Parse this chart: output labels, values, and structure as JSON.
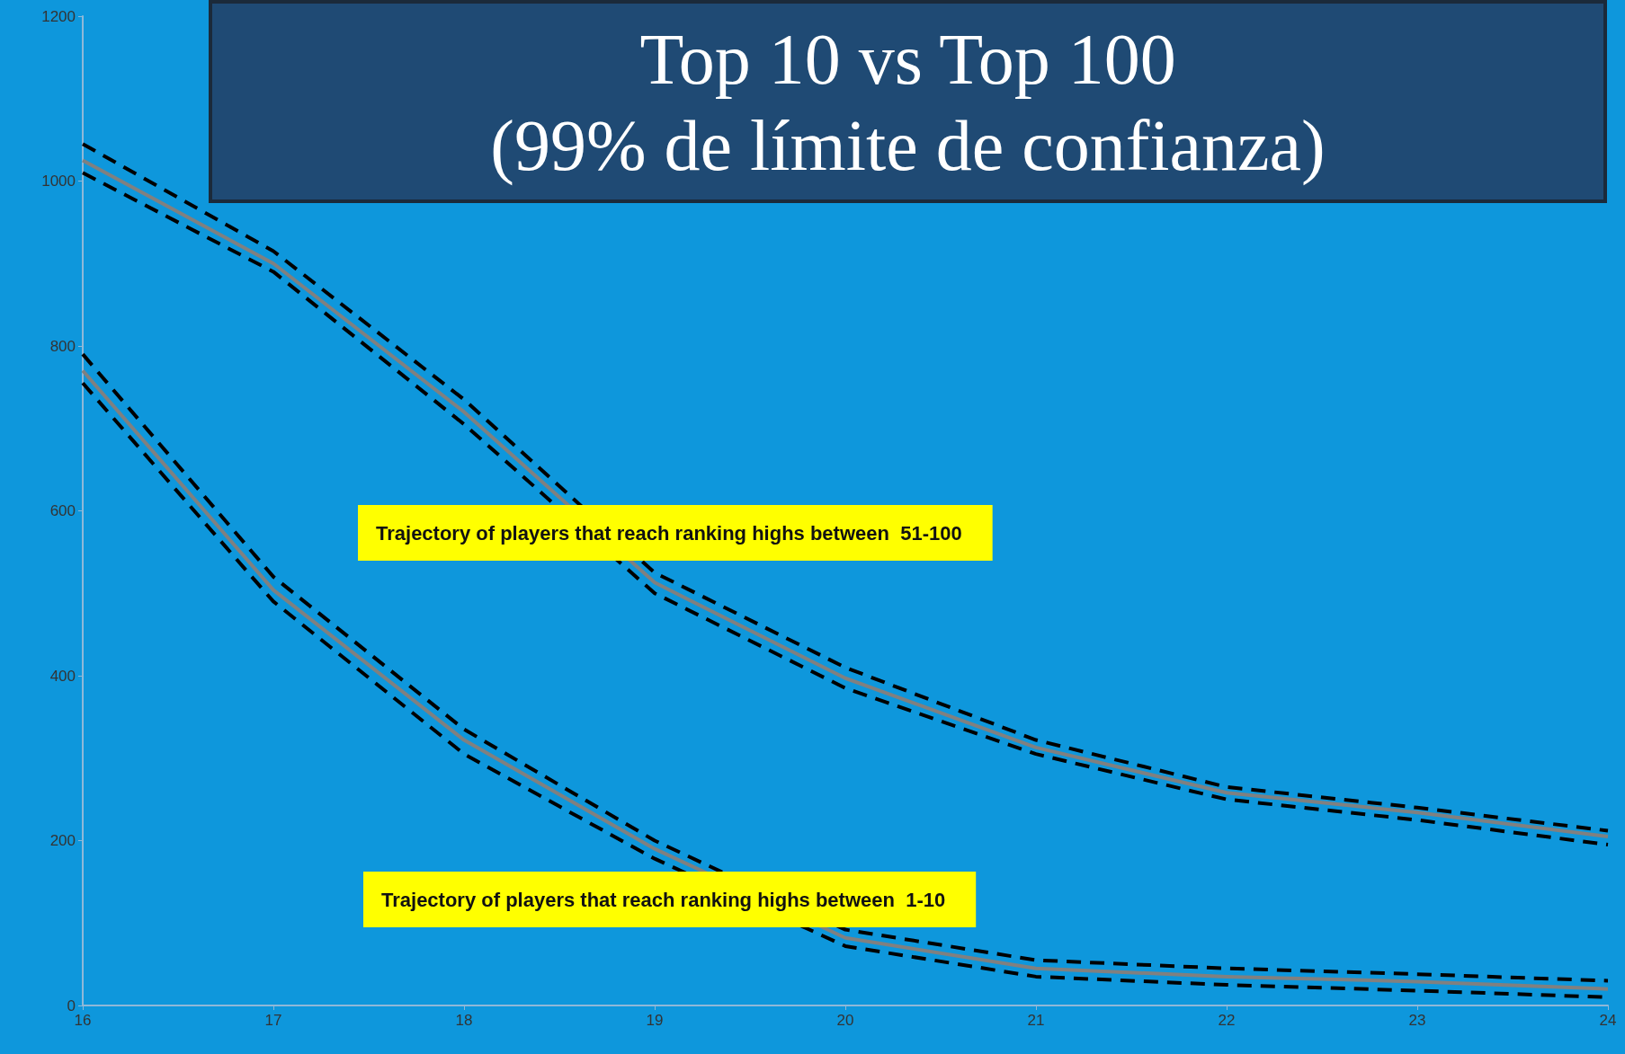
{
  "chart_data": {
    "type": "line",
    "title": "Top 10 vs Top 100",
    "subtitle": "(99% de límite de confianza)",
    "x": [
      16,
      17,
      18,
      19,
      20,
      21,
      22,
      23,
      24
    ],
    "series": [
      {
        "color": "#808080",
        "values": [
          1025,
          900,
          720,
          513,
          397,
          313,
          258,
          234,
          205
        ]
      },
      {
        "color": "#000000",
        "line_style": "dashed",
        "values": [
          1010,
          890,
          705,
          500,
          385,
          305,
          250,
          225,
          195
        ]
      },
      {
        "color": "#000000",
        "line_style": "dashed",
        "values": [
          1045,
          915,
          735,
          525,
          410,
          322,
          265,
          240,
          212
        ]
      },
      {
        "color": "#808080",
        "values": [
          770,
          504,
          322,
          190,
          82,
          45,
          35,
          29,
          20
        ]
      },
      {
        "color": "#000000",
        "line_style": "dashed",
        "values": [
          755,
          490,
          305,
          178,
          72,
          35,
          25,
          18,
          10
        ]
      },
      {
        "color": "#000000",
        "line_style": "dashed",
        "values": [
          790,
          520,
          335,
          200,
          92,
          55,
          45,
          38,
          30
        ]
      }
    ],
    "annotations": [
      "Trajectory of players that reach ranking highs between  51-100",
      "Trajectory of players that reach ranking highs between  1-10"
    ],
    "xlim": [
      16,
      24
    ],
    "xticks": [
      16,
      17,
      18,
      19,
      20,
      21,
      22,
      23,
      24
    ],
    "ylim": [
      0,
      1200
    ],
    "yticks": [
      0,
      200,
      400,
      600,
      800,
      1000,
      1200
    ],
    "grid": false,
    "marker": "none",
    "line_style": "solid"
  }
}
